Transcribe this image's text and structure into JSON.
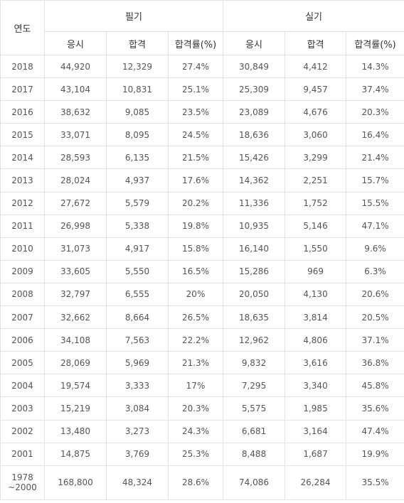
{
  "table": {
    "year_header": "연도",
    "groups": [
      "필기",
      "실기"
    ],
    "subheaders": [
      "응시",
      "합격",
      "합격률(%)",
      "응시",
      "합격",
      "합격률(%)"
    ],
    "rows": [
      [
        "2018",
        "44,920",
        "12,329",
        "27.4%",
        "30,849",
        "4,412",
        "14.3%"
      ],
      [
        "2017",
        "43,104",
        "10,831",
        "25.1%",
        "25,309",
        "9,457",
        "37.4%"
      ],
      [
        "2016",
        "38,632",
        "9,085",
        "23.5%",
        "23,089",
        "4,676",
        "20.3%"
      ],
      [
        "2015",
        "33,071",
        "8,095",
        "24.5%",
        "18,636",
        "3,060",
        "16.4%"
      ],
      [
        "2014",
        "28,593",
        "6,135",
        "21.5%",
        "15,426",
        "3,299",
        "21.4%"
      ],
      [
        "2013",
        "28,024",
        "4,937",
        "17.6%",
        "14,362",
        "2,251",
        "15.7%"
      ],
      [
        "2012",
        "27,672",
        "5,579",
        "20.2%",
        "11,336",
        "1,752",
        "15.5%"
      ],
      [
        "2011",
        "26,998",
        "5,338",
        "19.8%",
        "10,935",
        "5,146",
        "47.1%"
      ],
      [
        "2010",
        "31,073",
        "4,917",
        "15.8%",
        "16,140",
        "1,550",
        "9.6%"
      ],
      [
        "2009",
        "33,605",
        "5,550",
        "16.5%",
        "15,286",
        "969",
        "6.3%"
      ],
      [
        "2008",
        "32,797",
        "6,555",
        "20%",
        "20,050",
        "4,130",
        "20.6%"
      ],
      [
        "2007",
        "32,662",
        "8,664",
        "26.5%",
        "18,635",
        "3,814",
        "20.5%"
      ],
      [
        "2006",
        "34,108",
        "7,563",
        "22.2%",
        "12,962",
        "4,806",
        "37.1%"
      ],
      [
        "2005",
        "28,069",
        "5,969",
        "21.3%",
        "9,832",
        "3,616",
        "36.8%"
      ],
      [
        "2004",
        "19,574",
        "3,333",
        "17%",
        "7,295",
        "3,340",
        "45.8%"
      ],
      [
        "2003",
        "15,219",
        "3,084",
        "20.3%",
        "5,575",
        "1,985",
        "35.6%"
      ],
      [
        "2002",
        "13,480",
        "3,273",
        "24.3%",
        "6,681",
        "3,164",
        "47.4%"
      ],
      [
        "2001",
        "14,875",
        "3,769",
        "25.3%",
        "8,488",
        "1,687",
        "19.9%"
      ],
      [
        "1978\n~2000",
        "168,800",
        "48,324",
        "28.6%",
        "74,086",
        "26,284",
        "35.5%"
      ]
    ]
  }
}
